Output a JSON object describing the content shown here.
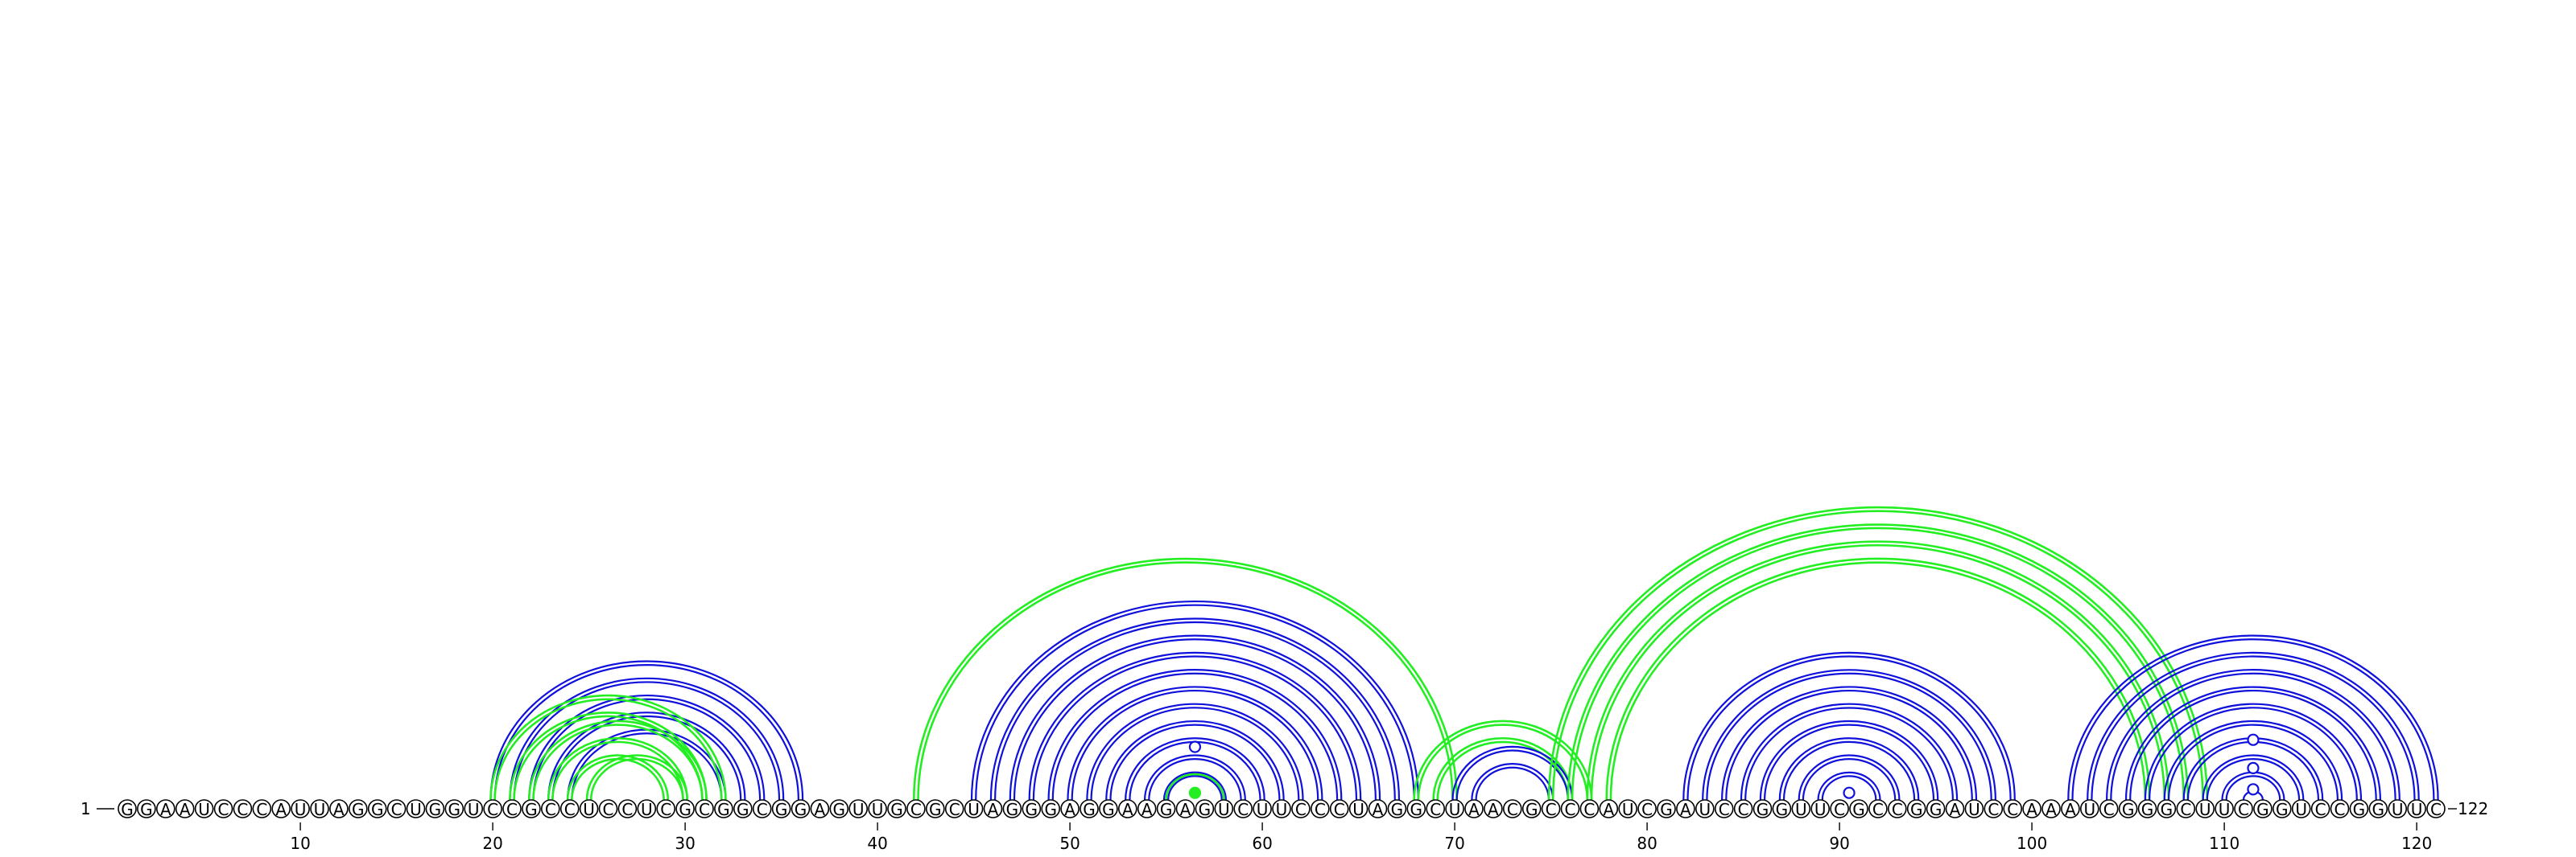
{
  "sequence": "GGAAUCCCAUUAGGCUGGUCCGCCUCCUCGCGGCGGAGUUGCGCUAGGGAGGAAGAGUCUUCCCUAGGCUAACGCCCAUCGAUCCGGUUCGCCGGAUCCAAAUCGGGCUUCGGUCCGGUUC",
  "start_label": "1",
  "end_label": "122",
  "ticks": [
    10,
    20,
    30,
    40,
    50,
    60,
    70,
    80,
    90,
    100,
    110,
    120
  ],
  "colors": {
    "blue": "#1010dd",
    "green": "#22ee22"
  },
  "pair_groups": [
    {
      "color": "blue",
      "double": true,
      "pairs": [
        [
          20,
          36
        ],
        [
          21,
          35
        ],
        [
          22,
          34
        ],
        [
          23,
          33
        ],
        [
          24,
          32
        ]
      ]
    },
    {
      "color": "green",
      "double": true,
      "pairs": [
        [
          20,
          32
        ],
        [
          21,
          31
        ],
        [
          22,
          31
        ],
        [
          23,
          30
        ],
        [
          24,
          29
        ],
        [
          25,
          30
        ]
      ]
    },
    {
      "color": "green",
      "double": true,
      "pairs": [
        [
          42,
          70
        ]
      ]
    },
    {
      "color": "blue",
      "double": true,
      "pairs": [
        [
          45,
          68
        ],
        [
          46,
          67
        ],
        [
          47,
          66
        ],
        [
          48,
          65
        ],
        [
          49,
          64
        ],
        [
          50,
          63
        ],
        [
          51,
          62
        ],
        [
          52,
          61
        ],
        [
          53,
          60
        ],
        [
          54,
          59
        ],
        [
          55,
          58
        ]
      ]
    },
    {
      "color": "green",
      "double": false,
      "pairs": [
        [
          55,
          58
        ]
      ]
    },
    {
      "color": "green",
      "double": true,
      "pairs": [
        [
          68,
          77
        ],
        [
          69,
          76
        ]
      ]
    },
    {
      "color": "blue",
      "double": true,
      "pairs": [
        [
          70,
          76
        ],
        [
          71,
          75
        ]
      ]
    },
    {
      "color": "green",
      "double": true,
      "pairs": [
        [
          75,
          109
        ],
        [
          76,
          108
        ],
        [
          77,
          107
        ],
        [
          78,
          106
        ]
      ]
    },
    {
      "color": "blue",
      "double": true,
      "pairs": [
        [
          82,
          99
        ],
        [
          83,
          98
        ],
        [
          84,
          97
        ],
        [
          85,
          96
        ],
        [
          86,
          95
        ],
        [
          87,
          94
        ],
        [
          88,
          93
        ],
        [
          89,
          92
        ]
      ]
    },
    {
      "color": "blue",
      "double": true,
      "pairs": [
        [
          102,
          121
        ],
        [
          103,
          120
        ],
        [
          104,
          119
        ],
        [
          105,
          118
        ],
        [
          106,
          117
        ],
        [
          107,
          116
        ],
        [
          108,
          115
        ],
        [
          109,
          114
        ],
        [
          110,
          113
        ]
      ]
    },
    {
      "color": "blue",
      "double": false,
      "pairs": [
        [
          111,
          112
        ]
      ]
    }
  ],
  "markers": [
    {
      "pos": 56.5,
      "level": 0.4,
      "color": "green",
      "filled": true
    },
    {
      "pos": 56.5,
      "level": 3.0,
      "color": "blue",
      "filled": false
    },
    {
      "pos": 90.5,
      "level": 0.4,
      "color": "blue",
      "filled": false
    },
    {
      "pos": 111.5,
      "level": 0.6,
      "color": "blue",
      "filled": false
    },
    {
      "pos": 111.5,
      "level": 1.8,
      "color": "blue",
      "filled": false
    },
    {
      "pos": 111.5,
      "level": 3.4,
      "color": "blue",
      "filled": false
    }
  ]
}
